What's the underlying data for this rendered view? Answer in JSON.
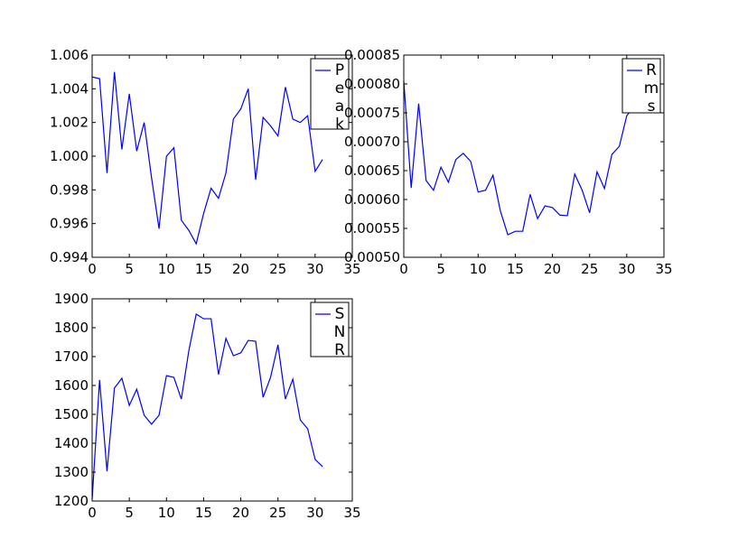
{
  "chart_data": [
    {
      "type": "line",
      "x": [
        0,
        1,
        2,
        3,
        4,
        5,
        6,
        7,
        8,
        9,
        10,
        11,
        12,
        13,
        14,
        15,
        16,
        17,
        18,
        19,
        20,
        21,
        22,
        23,
        24,
        25,
        26,
        27,
        28,
        29,
        30,
        31
      ],
      "series": [
        {
          "name": "Peak",
          "color": "#0000ff",
          "values": [
            1.0047,
            1.0046,
            0.999,
            1.005,
            1.0004,
            1.0037,
            1.0003,
            1.002,
            0.9987,
            0.9957,
            1.0,
            1.0005,
            0.9962,
            0.9956,
            0.9948,
            0.9966,
            0.9981,
            0.9975,
            0.999,
            1.0022,
            1.0028,
            1.004,
            0.9986,
            1.0023,
            1.0018,
            1.0012,
            1.0041,
            1.0022,
            1.002,
            1.0024,
            0.9991,
            0.9998
          ]
        }
      ],
      "xlim": [
        0,
        35
      ],
      "xticks": [
        0,
        5,
        10,
        15,
        20,
        25,
        30,
        35
      ],
      "ylim": [
        0.994,
        1.006
      ],
      "yticks": [
        0.994,
        0.996,
        0.998,
        {
          "value": 1,
          "label": "1.000"
        },
        1.002,
        1.004,
        1.006
      ],
      "legend": "upper right"
    },
    {
      "type": "line",
      "x": [
        0,
        1,
        2,
        3,
        4,
        5,
        6,
        7,
        8,
        9,
        10,
        11,
        12,
        13,
        14,
        15,
        16,
        17,
        18,
        19,
        20,
        21,
        22,
        23,
        24,
        25,
        26,
        27,
        28,
        29,
        30,
        31
      ],
      "series": [
        {
          "name": "Rms",
          "color": "#0000ff",
          "values": [
            0.000805,
            0.00062,
            0.000766,
            0.000633,
            0.000616,
            0.000656,
            0.00063,
            0.000669,
            0.00068,
            0.000666,
            0.000613,
            0.000616,
            0.000642,
            0.00058,
            0.000539,
            0.000545,
            0.000545,
            0.000609,
            0.000567,
            0.000589,
            0.000586,
            0.000573,
            0.000572,
            0.000644,
            0.000616,
            0.000577,
            0.000648,
            0.000619,
            0.000678,
            0.000692,
            0.000745,
            0.000761
          ]
        }
      ],
      "xlim": [
        0,
        35
      ],
      "xticks": [
        0,
        5,
        10,
        15,
        20,
        25,
        30,
        35
      ],
      "ylim": [
        0.0005,
        0.00085
      ],
      "yticks": [
        {
          "value": 0.0005,
          "label": "0.00050"
        },
        {
          "value": 0.00055,
          "label": "0.00055"
        },
        {
          "value": 0.0006,
          "label": "0.00060"
        },
        {
          "value": 0.00065,
          "label": "0.00065"
        },
        {
          "value": 0.0007,
          "label": "0.00070"
        },
        {
          "value": 0.00075,
          "label": "0.00075"
        },
        {
          "value": 0.0008,
          "label": "0.00080"
        },
        {
          "value": 0.00085,
          "label": "0.00085"
        }
      ],
      "legend": "upper right"
    },
    {
      "type": "line",
      "x": [
        0,
        1,
        2,
        3,
        4,
        5,
        6,
        7,
        8,
        9,
        10,
        11,
        12,
        13,
        14,
        15,
        16,
        17,
        18,
        19,
        20,
        21,
        22,
        23,
        24,
        25,
        26,
        27,
        28,
        29,
        30,
        31
      ],
      "series": [
        {
          "name": "SNR",
          "color": "#0000ff",
          "values": [
            1206,
            1619,
            1303,
            1591,
            1625,
            1531,
            1587,
            1497,
            1466,
            1497,
            1634,
            1628,
            1553,
            1719,
            1847,
            1831,
            1831,
            1638,
            1763,
            1703,
            1713,
            1756,
            1753,
            1559,
            1628,
            1741,
            1553,
            1622,
            1481,
            1450,
            1344,
            1319
          ]
        }
      ],
      "xlim": [
        0,
        35
      ],
      "xticks": [
        0,
        5,
        10,
        15,
        20,
        25,
        30,
        35
      ],
      "ylim": [
        1200,
        1900
      ],
      "yticks": [
        1200,
        1300,
        1400,
        1500,
        1600,
        1700,
        1800,
        1900
      ],
      "legend": "upper right"
    }
  ]
}
